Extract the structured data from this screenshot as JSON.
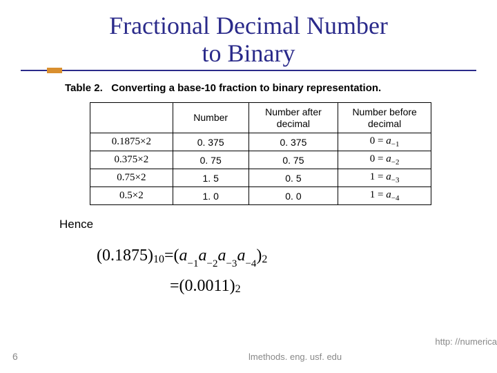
{
  "title_line1": "Fractional Decimal Number",
  "title_line2": "to Binary",
  "caption_prefix": "Table 2.",
  "caption_text": "Converting a base-10 fraction to binary representation.",
  "colors": {
    "title": "#2a2a8a",
    "rule": "#2a2a8a",
    "accent": "#d98f2e",
    "footer": "#888888",
    "border": "#000000",
    "background": "#ffffff"
  },
  "table": {
    "headers": {
      "c0": "",
      "c1": "Number",
      "c2": "Number after decimal",
      "c3": "Number before decimal"
    },
    "rows": [
      {
        "mult": "0.1875×2",
        "num": "0. 375",
        "after": "0. 375",
        "before_lhs": "0 = ",
        "before_sub": "a−1"
      },
      {
        "mult": "0.375×2",
        "num": "0. 75",
        "after": "0. 75",
        "before_lhs": "0 = ",
        "before_sub": "a−2"
      },
      {
        "mult": "0.75×2",
        "num": "1. 5",
        "after": "0. 5",
        "before_lhs": "1 = ",
        "before_sub": "a−3"
      },
      {
        "mult": "0.5×2",
        "num": "1. 0",
        "after": "0. 0",
        "before_lhs": "1 = ",
        "before_sub": "a−4"
      }
    ]
  },
  "hence": "Hence",
  "equation": {
    "lhs_val": "(0.1875)",
    "lhs_sub": "10",
    "eq_sym": " = ",
    "rhs1_open": "(",
    "rhs1_terms": [
      "a",
      "−1",
      "a",
      "−2",
      "a",
      "−3",
      "a",
      "−4"
    ],
    "rhs1_close": ")",
    "rhs1_sub": "2",
    "line2_eq": "= ",
    "line2_val": "(0.0011)",
    "line2_sub": "2"
  },
  "footer": {
    "page": "6",
    "center": "lmethods. eng. usf. edu",
    "right": "http: //numerica"
  }
}
